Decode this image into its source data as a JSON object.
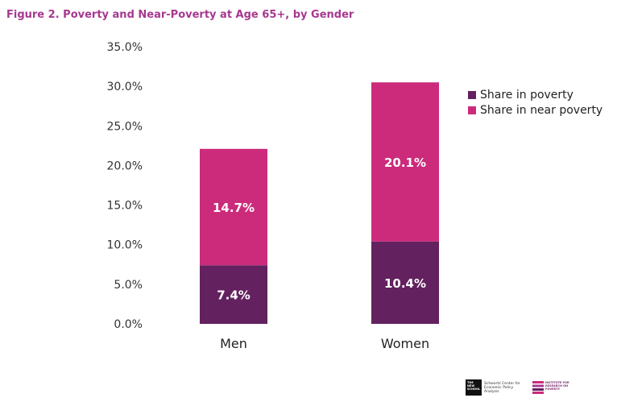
{
  "title": "Figure 2. Poverty and Near-Poverty at Age 65+, by Gender",
  "colors": {
    "title": "#a6388f",
    "poverty": "#63215f",
    "near_poverty": "#cc2b7c",
    "axis_text": "#333333"
  },
  "chart_data": {
    "type": "bar",
    "stacked": true,
    "categories": [
      "Men",
      "Women"
    ],
    "series": [
      {
        "name": "Share in poverty",
        "values": [
          7.4,
          10.4
        ],
        "labels": [
          "7.4%",
          "10.4%"
        ]
      },
      {
        "name": "Share in near poverty",
        "values": [
          14.7,
          20.1
        ],
        "labels": [
          "14.7%",
          "20.1%"
        ]
      }
    ],
    "ylim": [
      0,
      35
    ],
    "yticks": [
      0,
      5,
      10,
      15,
      20,
      25,
      30,
      35
    ],
    "ytick_labels": [
      "0.0%",
      "5.0%",
      "10.0%",
      "15.0%",
      "20.0%",
      "25.0%",
      "30.0%",
      "35.0%"
    ],
    "legend_position": "right",
    "grid": false
  },
  "legend": {
    "items": [
      {
        "label": "Share in poverty",
        "color": "#63215f"
      },
      {
        "label": "Share in near poverty",
        "color": "#cc2b7c"
      }
    ]
  },
  "logos": {
    "new_school": "THE NEW SCHOOL",
    "schwartz": "Schwartz Center for Economic Policy Analysis",
    "irp": "INSTITUTE FOR RESEARCH ON POVERTY"
  }
}
